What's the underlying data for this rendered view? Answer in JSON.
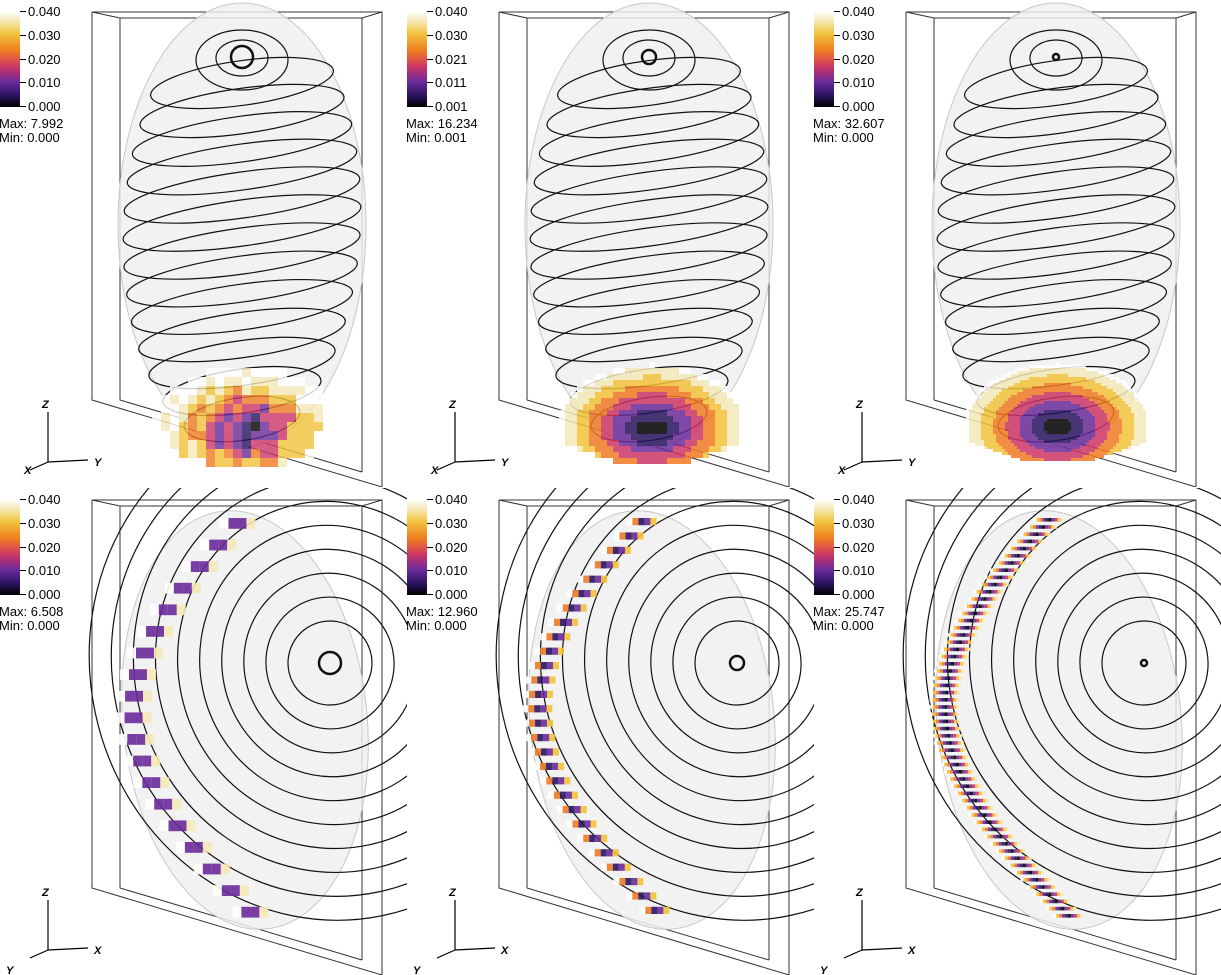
{
  "panels": [
    {
      "view": "top",
      "colorbar": {
        "ticks": [
          "0.040",
          "0.030",
          "0.020",
          "0.010",
          "0.000"
        ]
      },
      "max_label": "Max:",
      "max_value": "7.992",
      "min_label": "Min:",
      "min_value": "0.000",
      "axes": {
        "vertical": "Z",
        "left": "X",
        "right": "Y"
      },
      "blob": "coarse"
    },
    {
      "view": "top",
      "colorbar": {
        "ticks": [
          "0.040",
          "0.030",
          "0.021",
          "0.011",
          "0.001"
        ]
      },
      "max_label": "Max:",
      "max_value": "16.234",
      "min_label": "Min:",
      "min_value": "0.001",
      "axes": {
        "vertical": "Z",
        "left": "X",
        "right": "Y"
      },
      "blob": "medium"
    },
    {
      "view": "top",
      "colorbar": {
        "ticks": [
          "0.040",
          "0.030",
          "0.020",
          "0.010",
          "0.000"
        ]
      },
      "max_label": "Max:",
      "max_value": "32.607",
      "min_label": "Min:",
      "min_value": "0.000",
      "axes": {
        "vertical": "Z",
        "left": "X",
        "right": "Y"
      },
      "blob": "fine"
    },
    {
      "view": "side",
      "colorbar": {
        "ticks": [
          "0.040",
          "0.030",
          "0.020",
          "0.010",
          "0.000"
        ]
      },
      "max_label": "Max:",
      "max_value": "6.508",
      "min_label": "Min:",
      "min_value": "0.000",
      "axes": {
        "vertical": "Z",
        "left": "Y",
        "right": "X"
      },
      "blob": "coarse"
    },
    {
      "view": "side",
      "colorbar": {
        "ticks": [
          "0.040",
          "0.030",
          "0.020",
          "0.010",
          "0.000"
        ]
      },
      "max_label": "Max:",
      "max_value": "12.960",
      "min_label": "Min:",
      "min_value": "0.000",
      "axes": {
        "vertical": "Z",
        "left": "Y",
        "right": "X"
      },
      "blob": "medium"
    },
    {
      "view": "side",
      "colorbar": {
        "ticks": [
          "0.040",
          "0.030",
          "0.020",
          "0.010",
          "0.000"
        ]
      },
      "max_label": "Max:",
      "max_value": "25.747",
      "min_label": "Min:",
      "min_value": "0.000",
      "axes": {
        "vertical": "Z",
        "left": "Y",
        "right": "X"
      },
      "blob": "fine"
    }
  ],
  "colors": {
    "ellipsoid_fill": "#f0f0f0",
    "ellipsoid_stroke": "#c8c8c8",
    "contour": "#111111",
    "box": "#333333",
    "colormap": [
      "#000000",
      "#2a1460",
      "#6a2a9a",
      "#cc3566",
      "#ef7a22",
      "#f2c23a",
      "#f5e9b8",
      "#ffffff"
    ]
  }
}
